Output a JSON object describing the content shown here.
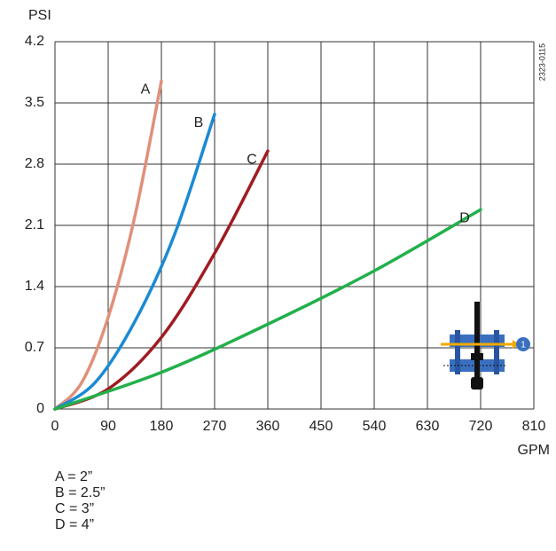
{
  "chart_data": {
    "type": "line",
    "y_label": "PSI",
    "x_label": "GPM",
    "figure_id": "2323-0115",
    "icon_label": "1",
    "xlim": [
      0,
      810
    ],
    "xticks": [
      0,
      90,
      180,
      270,
      360,
      450,
      540,
      630,
      720,
      810
    ],
    "ylim": [
      0,
      4.2
    ],
    "yticks": [
      0,
      0.7,
      1.4,
      2.1,
      2.8,
      3.5,
      4.2
    ],
    "grid": true,
    "series": [
      {
        "name": "A",
        "color": "#e0907a",
        "x": [
          0,
          45,
          90,
          135,
          180
        ],
        "values": [
          0,
          0.3,
          1.05,
          2.2,
          3.75
        ]
      },
      {
        "name": "B",
        "color": "#1a8ad4",
        "x": [
          0,
          67.5,
          135,
          202.5,
          270
        ],
        "values": [
          0,
          0.3,
          1.0,
          2.0,
          3.37
        ]
      },
      {
        "name": "C",
        "color": "#a01c22",
        "x": [
          0,
          90,
          180,
          270,
          360
        ],
        "values": [
          0,
          0.23,
          0.82,
          1.78,
          2.95
        ]
      },
      {
        "name": "D",
        "color": "#22b04b",
        "x": [
          0,
          180,
          360,
          540,
          720
        ],
        "values": [
          0,
          0.42,
          0.97,
          1.58,
          2.28
        ]
      }
    ],
    "notes": [
      "A = 2”",
      "B = 2.5”",
      "C = 3”",
      "D = 4”"
    ]
  }
}
